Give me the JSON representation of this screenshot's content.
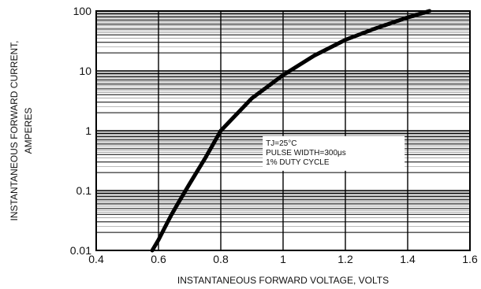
{
  "chart_data": {
    "type": "line",
    "title": "",
    "xlabel": "INSTANTANEOUS FORWARD VOLTAGE, VOLTS",
    "ylabel": "INSTANTANEOUS FORWARD CURRENT,",
    "ylabel_line2": "AMPERES",
    "xlim": [
      0.4,
      1.6
    ],
    "ylim": [
      0.01,
      100
    ],
    "yscale": "log",
    "x_ticks": [
      0.4,
      0.6,
      0.8,
      1.0,
      1.2,
      1.4,
      1.6
    ],
    "x_tick_labels": [
      "0.4",
      "0.6",
      "0.8",
      "1",
      "1.2",
      "1.4",
      "1.6"
    ],
    "y_ticks": [
      0.01,
      0.1,
      1,
      10,
      100
    ],
    "y_tick_labels": [
      "0.01",
      "0.1",
      "1",
      "10",
      "100"
    ],
    "grid": true,
    "annotation": {
      "lines": [
        "TJ=25°C",
        "PULSE WIDTH=300μs",
        "1% DUTY CYCLE"
      ],
      "x": 0.97,
      "y": 0.6
    },
    "series": [
      {
        "name": "",
        "x": [
          0.58,
          0.6,
          0.62,
          0.64,
          0.66,
          0.7,
          0.75,
          0.8,
          0.9,
          1.0,
          1.1,
          1.2,
          1.3,
          1.4,
          1.47
        ],
        "y": [
          0.01,
          0.015,
          0.024,
          0.038,
          0.058,
          0.13,
          0.35,
          1.0,
          3.5,
          8.5,
          18,
          33,
          52,
          78,
          100
        ]
      }
    ]
  }
}
